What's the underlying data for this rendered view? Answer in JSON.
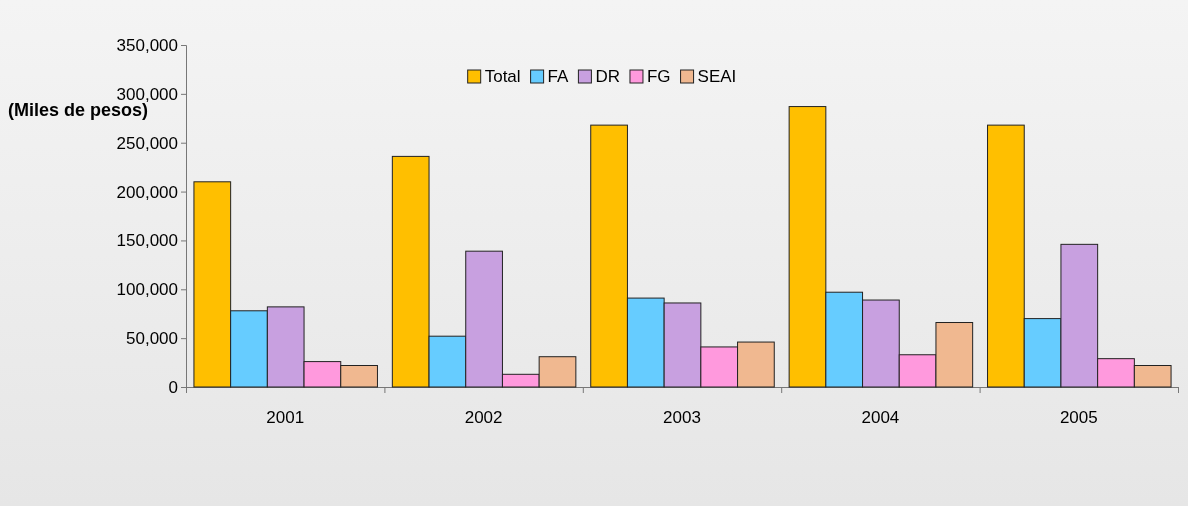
{
  "chart_data": {
    "type": "bar",
    "ylabel": "(Miles de pesos)",
    "categories": [
      "2001",
      "2002",
      "2003",
      "2004",
      "2005"
    ],
    "series": [
      {
        "name": "Total",
        "color": "#ffbf00",
        "values": [
          210000,
          236000,
          268000,
          287000,
          268000
        ]
      },
      {
        "name": "FA",
        "color": "#66ccff",
        "values": [
          78000,
          52000,
          91000,
          97000,
          70000
        ]
      },
      {
        "name": "DR",
        "color": "#c8a0e0",
        "values": [
          82000,
          139000,
          86000,
          89000,
          146000
        ]
      },
      {
        "name": "FG",
        "color": "#ff99dd",
        "values": [
          26000,
          13000,
          41000,
          33000,
          29000
        ]
      },
      {
        "name": "SEAI",
        "color": "#f0b890",
        "values": [
          22000,
          31000,
          46000,
          66000,
          22000
        ]
      }
    ],
    "ylim": [
      0,
      350000
    ],
    "yticks": [
      0,
      {
        "value": 50000,
        "label": "50,000"
      },
      {
        "value": 100000,
        "label": "100,000"
      },
      {
        "value": 150000,
        "label": "150,000"
      },
      {
        "value": 200000,
        "label": "200,000"
      },
      {
        "value": 250000,
        "label": "250,000"
      },
      {
        "value": 300000,
        "label": "300,000"
      },
      {
        "value": 350000,
        "label": "350,000"
      }
    ],
    "legend": "top",
    "grid": false
  }
}
